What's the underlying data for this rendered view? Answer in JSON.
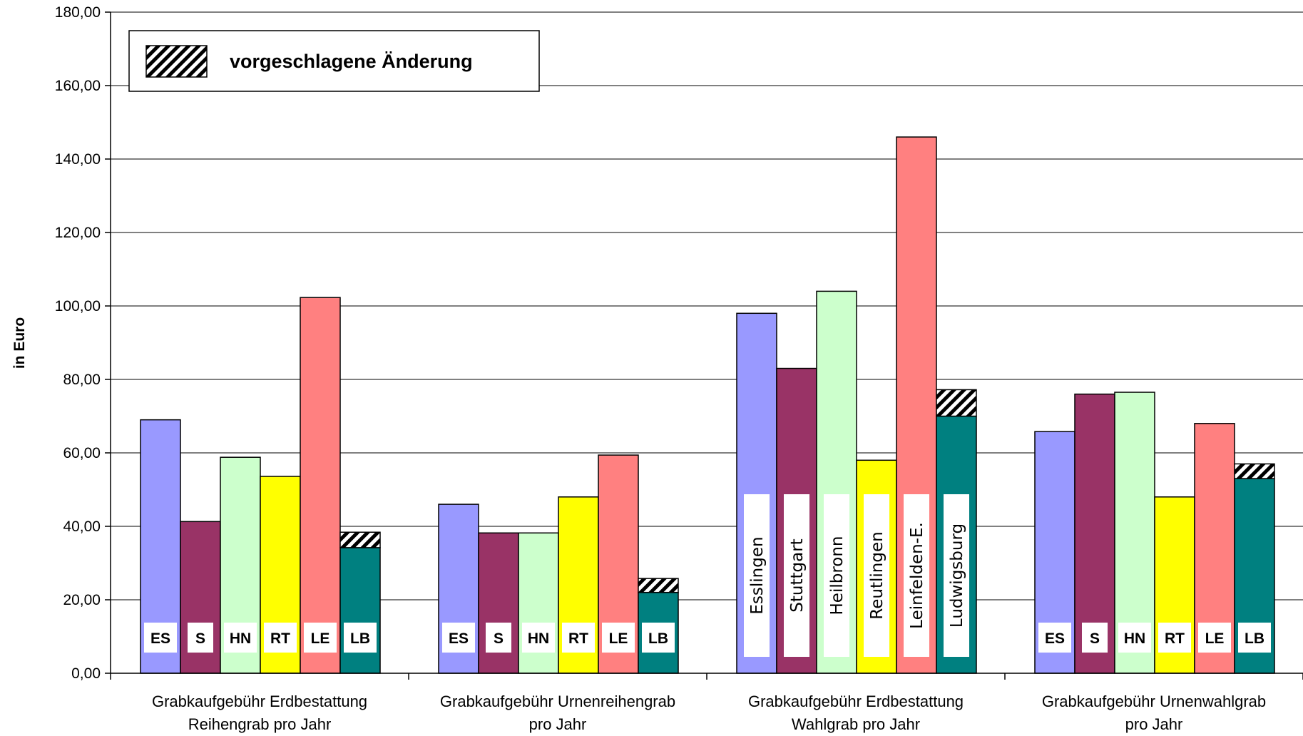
{
  "chart_data": {
    "type": "bar",
    "ylabel": "in Euro",
    "ylim": [
      0,
      180
    ],
    "yticks": [
      "0,00",
      "20,00",
      "40,00",
      "60,00",
      "80,00",
      "100,00",
      "120,00",
      "140,00",
      "160,00",
      "180,00"
    ],
    "grid": true,
    "legend": {
      "position": "top-left",
      "label": "vorgeschlagene Änderung",
      "pattern": "hatched"
    },
    "categories": [
      {
        "line1": "Grabkaufgebühr Erdbestattung",
        "line2": "Reihengrab pro Jahr",
        "label_style": "abbr"
      },
      {
        "line1": "Grabkaufgebühr Urnenreihengrab",
        "line2": "pro Jahr",
        "label_style": "abbr"
      },
      {
        "line1": "Grabkaufgebühr Erdbestattung",
        "line2": "Wahlgrab pro Jahr",
        "label_style": "city"
      },
      {
        "line1": "Grabkaufgebühr Urnenwahlgrab",
        "line2": "pro Jahr",
        "label_style": "abbr"
      }
    ],
    "series": [
      {
        "abbr": "ES",
        "name": "Esslingen",
        "color": "#9999ff",
        "values": [
          69.0,
          46.0,
          98.0,
          65.8
        ]
      },
      {
        "abbr": "S",
        "name": "Stuttgart",
        "color": "#993366",
        "values": [
          41.3,
          38.2,
          83.0,
          76.0
        ]
      },
      {
        "abbr": "HN",
        "name": "Heilbronn",
        "color": "#ccffcc",
        "values": [
          58.8,
          38.2,
          104.0,
          76.5
        ]
      },
      {
        "abbr": "RT",
        "name": "Reutlingen",
        "color": "#ffff00",
        "values": [
          53.6,
          48.0,
          58.0,
          48.0
        ]
      },
      {
        "abbr": "LE",
        "name": "Leinfelden-E.",
        "color": "#ff8080",
        "values": [
          102.3,
          59.4,
          146.0,
          68.0
        ]
      },
      {
        "abbr": "LB",
        "name": "Ludwigsburg",
        "color": "#008080",
        "values": [
          34.2,
          22.0,
          70.0,
          53.0
        ],
        "proposed_change": [
          38.4,
          25.8,
          77.2,
          57.0
        ]
      }
    ]
  }
}
